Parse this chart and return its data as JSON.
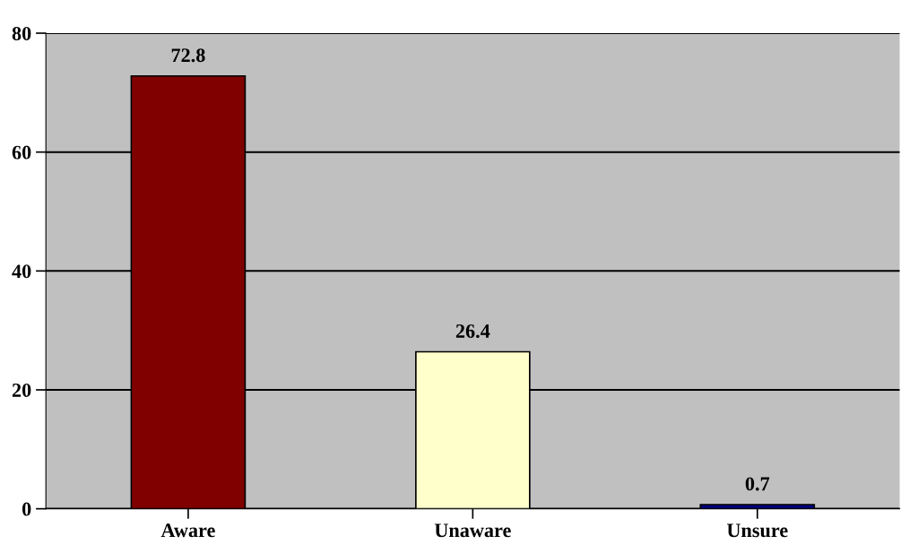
{
  "chart_data": {
    "type": "bar",
    "categories": [
      "Aware",
      "Unaware",
      "Unsure"
    ],
    "values": [
      72.8,
      26.4,
      0.7
    ],
    "colors": [
      "#800000",
      "#ffffcc",
      "#000080"
    ],
    "ylim": [
      0,
      80
    ],
    "yticks": [
      0,
      20,
      40,
      60,
      80
    ],
    "grid": "y",
    "data_labels": true
  }
}
